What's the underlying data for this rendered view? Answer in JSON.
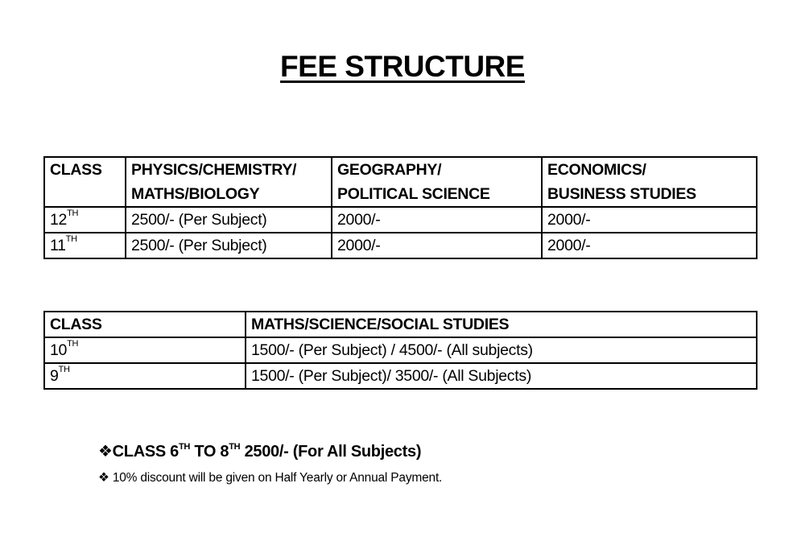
{
  "title": "FEE STRUCTURE",
  "senior_table": {
    "headers": [
      "CLASS",
      "PHYSICS/CHEMISTRY/",
      "MATHS/BIOLOGY",
      "GEOGRAPHY/",
      "POLITICAL SCIENCE",
      "ECONOMICS/",
      "BUSINESS STUDIES"
    ],
    "rows": [
      {
        "class_num": "12",
        "class_suffix": "TH",
        "pcmb": "2500/- (Per Subject)",
        "geo_pol": "2000/-",
        "eco_bus": "2000/-"
      },
      {
        "class_num": "11",
        "class_suffix": "TH",
        "pcmb": "2500/- (Per Subject)",
        "geo_pol": "2000/-",
        "eco_bus": "2000/-"
      }
    ]
  },
  "junior_table": {
    "headers": [
      "CLASS",
      "MATHS/SCIENCE/SOCIAL STUDIES"
    ],
    "rows": [
      {
        "class_num": "10",
        "class_suffix": "TH",
        "fee": "1500/- (Per Subject) / 4500/- (All subjects)"
      },
      {
        "class_num": "9",
        "class_suffix": "TH",
        "fee": "1500/- (Per Subject)/ 3500/- (All Subjects)"
      }
    ]
  },
  "notes": {
    "bullet": "❖",
    "line1": {
      "a": "CLASS 6",
      "a_sup": "TH",
      "b": " TO 8",
      "b_sup": "TH",
      "c": " 2500/- (For All Subjects)"
    },
    "line2": "10% discount will be given on Half Yearly or Annual Payment."
  }
}
